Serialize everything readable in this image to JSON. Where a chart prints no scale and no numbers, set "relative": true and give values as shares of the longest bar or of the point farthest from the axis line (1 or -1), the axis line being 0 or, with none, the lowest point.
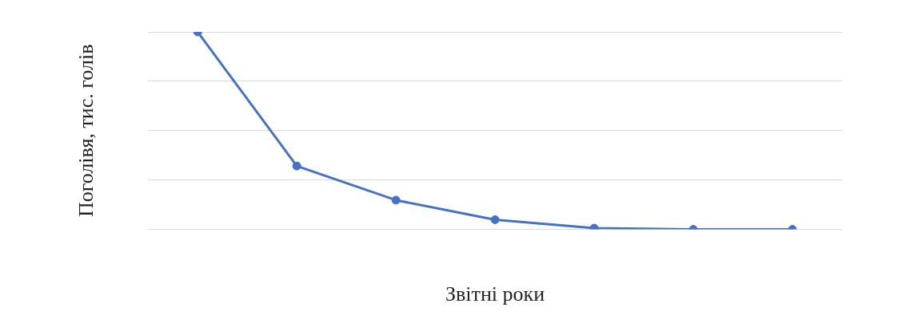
{
  "chart_data": {
    "type": "line",
    "relative": true,
    "xlabel": "Звітні роки",
    "ylabel": "Поголівя, тис. голів",
    "categories": [
      null,
      null,
      null,
      null,
      null,
      null,
      null
    ],
    "series": [
      {
        "color": "#4472c4",
        "values": [
          1,
          0.321,
          0.148,
          0.049,
          0.006,
          0,
          0
        ]
      }
    ],
    "marker": "circle",
    "line_style": "solid",
    "grid": "y",
    "legend": false
  }
}
